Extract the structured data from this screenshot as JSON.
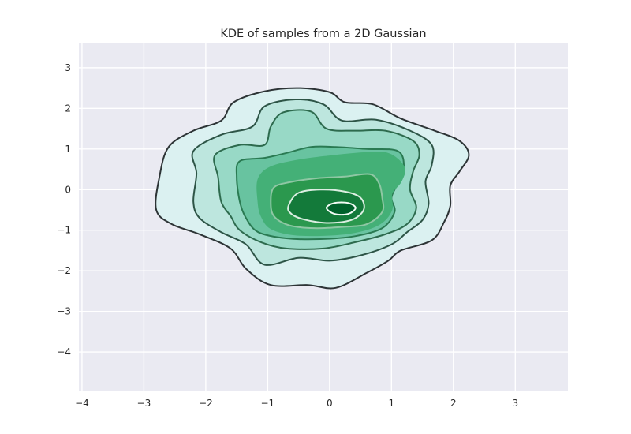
{
  "chart_data": {
    "type": "kde-contour",
    "title": "KDE of samples from a 2D Gaussian",
    "xlabel": "",
    "ylabel": "",
    "xlim": [
      -4.05,
      3.85
    ],
    "ylim": [
      -4.95,
      3.6
    ],
    "xticks": [
      -4,
      -3,
      -2,
      -1,
      0,
      1,
      2,
      3
    ],
    "yticks": [
      3,
      2,
      1,
      0,
      -1,
      -2,
      -3,
      -4
    ],
    "xtick_labels": [
      "−4",
      "−3",
      "−2",
      "−1",
      "0",
      "1",
      "2",
      "3"
    ],
    "ytick_labels": [
      "3",
      "2",
      "1",
      "0",
      "−1",
      "−2",
      "−3",
      "−4"
    ],
    "grid": true,
    "background": "#eaeaf2",
    "grid_color": "#ffffff",
    "contour_levels": [
      {
        "level": 1,
        "fill": "#dbf1f1",
        "line": "#2d3436",
        "points": [
          [
            -2.8,
            -0.5
          ],
          [
            -2.75,
            0.3
          ],
          [
            -2.6,
            1.05
          ],
          [
            -2.2,
            1.45
          ],
          [
            -1.75,
            1.7
          ],
          [
            -1.55,
            2.15
          ],
          [
            -1.05,
            2.42
          ],
          [
            -0.5,
            2.5
          ],
          [
            0.0,
            2.4
          ],
          [
            0.25,
            2.15
          ],
          [
            0.7,
            2.1
          ],
          [
            1.15,
            1.75
          ],
          [
            1.7,
            1.45
          ],
          [
            2.1,
            1.2
          ],
          [
            2.25,
            0.85
          ],
          [
            2.1,
            0.45
          ],
          [
            1.95,
            0.1
          ],
          [
            1.95,
            -0.4
          ],
          [
            1.85,
            -0.8
          ],
          [
            1.65,
            -1.25
          ],
          [
            1.15,
            -1.5
          ],
          [
            0.95,
            -1.75
          ],
          [
            0.6,
            -2.05
          ],
          [
            0.1,
            -2.42
          ],
          [
            -0.35,
            -2.35
          ],
          [
            -0.95,
            -2.35
          ],
          [
            -1.35,
            -1.95
          ],
          [
            -1.6,
            -1.45
          ],
          [
            -2.1,
            -1.1
          ],
          [
            -2.55,
            -0.85
          ]
        ]
      },
      {
        "level": 2,
        "fill": "#bde6de",
        "line": "#2d5446",
        "points": [
          [
            -2.2,
            -0.3
          ],
          [
            -2.15,
            0.4
          ],
          [
            -2.2,
            0.95
          ],
          [
            -1.75,
            1.35
          ],
          [
            -1.25,
            1.55
          ],
          [
            -1.05,
            2.05
          ],
          [
            -0.55,
            2.22
          ],
          [
            -0.1,
            2.1
          ],
          [
            0.2,
            1.7
          ],
          [
            0.75,
            1.72
          ],
          [
            1.3,
            1.45
          ],
          [
            1.65,
            1.1
          ],
          [
            1.65,
            0.6
          ],
          [
            1.55,
            0.2
          ],
          [
            1.6,
            -0.35
          ],
          [
            1.5,
            -0.75
          ],
          [
            1.25,
            -1.05
          ],
          [
            1.0,
            -1.35
          ],
          [
            0.5,
            -1.62
          ],
          [
            0.0,
            -1.75
          ],
          [
            -0.5,
            -1.68
          ],
          [
            -1.05,
            -1.85
          ],
          [
            -1.35,
            -1.35
          ],
          [
            -1.75,
            -1.05
          ],
          [
            -2.1,
            -0.7
          ]
        ]
      },
      {
        "level": 3,
        "fill": "#98d9c6",
        "line": "#2d6a4d",
        "points": [
          [
            -1.75,
            -0.3
          ],
          [
            -1.8,
            0.3
          ],
          [
            -1.85,
            0.85
          ],
          [
            -1.45,
            1.1
          ],
          [
            -1.05,
            1.1
          ],
          [
            -0.95,
            1.55
          ],
          [
            -0.75,
            1.9
          ],
          [
            -0.3,
            1.92
          ],
          [
            -0.05,
            1.5
          ],
          [
            0.4,
            1.45
          ],
          [
            0.9,
            1.45
          ],
          [
            1.35,
            1.2
          ],
          [
            1.45,
            0.85
          ],
          [
            1.35,
            0.45
          ],
          [
            1.3,
            0.0
          ],
          [
            1.4,
            -0.45
          ],
          [
            1.25,
            -0.85
          ],
          [
            0.9,
            -1.1
          ],
          [
            0.4,
            -1.3
          ],
          [
            -0.1,
            -1.45
          ],
          [
            -0.7,
            -1.45
          ],
          [
            -1.1,
            -1.3
          ],
          [
            -1.45,
            -1.0
          ],
          [
            -1.6,
            -0.65
          ]
        ]
      },
      {
        "level": 4,
        "fill": "#68c3a0",
        "line": "#2a7a52",
        "points": [
          [
            -1.45,
            -0.3
          ],
          [
            -1.5,
            0.3
          ],
          [
            -1.45,
            0.7
          ],
          [
            -1.05,
            0.78
          ],
          [
            -0.7,
            0.9
          ],
          [
            -0.3,
            1.05
          ],
          [
            0.1,
            1.05
          ],
          [
            0.6,
            1.0
          ],
          [
            1.1,
            0.95
          ],
          [
            1.2,
            0.55
          ],
          [
            1.1,
            0.15
          ],
          [
            1.0,
            -0.2
          ],
          [
            1.05,
            -0.55
          ],
          [
            0.85,
            -0.95
          ],
          [
            0.4,
            -1.15
          ],
          [
            -0.15,
            -1.22
          ],
          [
            -0.7,
            -1.2
          ],
          [
            -1.15,
            -1.05
          ],
          [
            -1.35,
            -0.7
          ]
        ]
      },
      {
        "level": 5,
        "fill": "#44b077",
        "line": "#44b077",
        "points": [
          [
            -1.15,
            -0.3
          ],
          [
            -1.15,
            0.25
          ],
          [
            -0.95,
            0.55
          ],
          [
            -0.5,
            0.72
          ],
          [
            0.0,
            0.82
          ],
          [
            0.55,
            0.9
          ],
          [
            0.95,
            0.88
          ],
          [
            1.2,
            0.55
          ],
          [
            1.15,
            0.2
          ],
          [
            1.0,
            -0.1
          ],
          [
            1.0,
            -0.5
          ],
          [
            0.8,
            -0.85
          ],
          [
            0.4,
            -1.05
          ],
          [
            -0.1,
            -1.12
          ],
          [
            -0.6,
            -1.1
          ],
          [
            -0.95,
            -0.95
          ],
          [
            -1.1,
            -0.65
          ]
        ]
      },
      {
        "level": 6,
        "fill": "#2b984e",
        "line": "#8fc7a4",
        "points": [
          [
            -0.95,
            -0.3
          ],
          [
            -0.9,
            0.05
          ],
          [
            -0.65,
            0.18
          ],
          [
            -0.2,
            0.28
          ],
          [
            0.25,
            0.32
          ],
          [
            0.65,
            0.38
          ],
          [
            0.8,
            0.15
          ],
          [
            0.85,
            -0.2
          ],
          [
            0.85,
            -0.55
          ],
          [
            0.6,
            -0.85
          ],
          [
            0.2,
            -0.92
          ],
          [
            -0.25,
            -0.95
          ],
          [
            -0.65,
            -0.88
          ],
          [
            -0.9,
            -0.65
          ]
        ]
      },
      {
        "level": 7,
        "fill": "#137a3a",
        "line": "#dceee2",
        "points": [
          [
            -0.65,
            -0.35
          ],
          [
            -0.5,
            -0.08
          ],
          [
            -0.15,
            0.0
          ],
          [
            0.25,
            -0.05
          ],
          [
            0.5,
            -0.2
          ],
          [
            0.55,
            -0.5
          ],
          [
            0.35,
            -0.75
          ],
          [
            -0.05,
            -0.82
          ],
          [
            -0.45,
            -0.72
          ],
          [
            -0.65,
            -0.55
          ]
        ]
      },
      {
        "level": 8,
        "fill": "#00612b",
        "line": "#f2fbf5",
        "points": [
          [
            -0.05,
            -0.45
          ],
          [
            0.08,
            -0.33
          ],
          [
            0.3,
            -0.33
          ],
          [
            0.42,
            -0.45
          ],
          [
            0.3,
            -0.6
          ],
          [
            0.08,
            -0.6
          ]
        ]
      }
    ]
  }
}
